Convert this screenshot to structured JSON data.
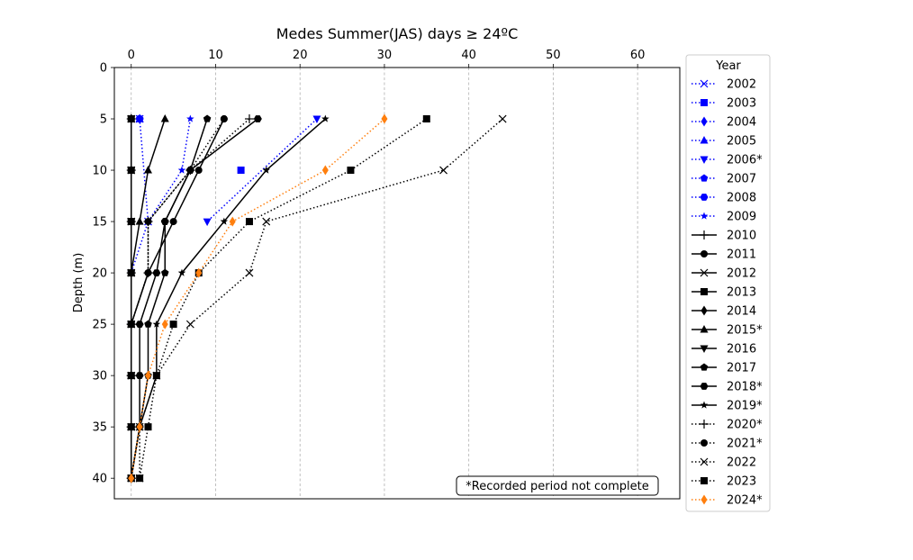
{
  "chart_data": {
    "type": "line",
    "title": "Medes Summer(JAS) days ≥ 24ºC",
    "xlabel": "",
    "ylabel": "Depth (m)",
    "xlim": [
      -2,
      65
    ],
    "ylim": [
      42,
      0
    ],
    "x_ticks": [
      0,
      10,
      20,
      30,
      40,
      50,
      60
    ],
    "y_ticks": [
      0,
      5,
      10,
      15,
      20,
      25,
      30,
      35,
      40
    ],
    "x_axis_position": "top",
    "grid": "vertical dashed",
    "legend_title": "Year",
    "legend_position": "outside right",
    "annotation": "*Recorded period not complete",
    "depths": [
      5,
      10,
      15,
      20,
      25,
      30,
      35,
      40
    ],
    "series": [
      {
        "name": "2002",
        "color": "#0000ff",
        "linestyle": "dotted",
        "marker": "x",
        "depths": [
          5,
          15
        ],
        "values": [
          1,
          2
        ]
      },
      {
        "name": "2003",
        "color": "#0000ff",
        "linestyle": "dotted",
        "marker": "square",
        "depths": [
          10
        ],
        "values": [
          13
        ]
      },
      {
        "name": "2004",
        "color": "#0000ff",
        "linestyle": "dotted",
        "marker": "diamond",
        "depths": [
          5
        ],
        "values": [
          1
        ]
      },
      {
        "name": "2005",
        "color": "#0000ff",
        "linestyle": "dotted",
        "marker": "triangle-up",
        "depths": [
          5
        ],
        "values": [
          1
        ]
      },
      {
        "name": "2006*",
        "color": "#0000ff",
        "linestyle": "dotted",
        "marker": "triangle-down",
        "depths": [
          5,
          15
        ],
        "values": [
          22,
          9
        ]
      },
      {
        "name": "2007",
        "color": "#0000ff",
        "linestyle": "dotted",
        "marker": "pentagon",
        "depths": [
          5
        ],
        "values": [
          1
        ]
      },
      {
        "name": "2008",
        "color": "#0000ff",
        "linestyle": "dotted",
        "marker": "hexagon",
        "depths": [
          5
        ],
        "values": [
          1
        ]
      },
      {
        "name": "2009",
        "color": "#0000ff",
        "linestyle": "dotted",
        "marker": "star",
        "depths": [
          5,
          10,
          15,
          20,
          25
        ],
        "values": [
          7,
          6,
          2,
          0,
          0
        ]
      },
      {
        "name": "2010",
        "color": "#000000",
        "linestyle": "solid",
        "marker": "plus",
        "depths": [
          5,
          10,
          15,
          20,
          25,
          30,
          35,
          40
        ],
        "values": [
          0,
          0,
          0,
          0,
          0,
          0,
          0,
          0
        ]
      },
      {
        "name": "2011",
        "color": "#000000",
        "linestyle": "solid",
        "marker": "circle",
        "depths": [
          5,
          10,
          15,
          20,
          25,
          30,
          35,
          40
        ],
        "values": [
          11,
          8,
          5,
          2,
          0,
          0,
          0,
          0
        ]
      },
      {
        "name": "2012",
        "color": "#000000",
        "linestyle": "solid",
        "marker": "x",
        "depths": [
          5,
          10,
          15,
          20,
          25,
          30,
          35,
          40
        ],
        "values": [
          0,
          0,
          0,
          0,
          0,
          0,
          0,
          0
        ]
      },
      {
        "name": "2013",
        "color": "#000000",
        "linestyle": "solid",
        "marker": "square",
        "depths": [
          5,
          10,
          15,
          20,
          25,
          30,
          35,
          40
        ],
        "values": [
          0,
          0,
          0,
          0,
          0,
          0,
          0,
          0
        ]
      },
      {
        "name": "2014",
        "color": "#000000",
        "linestyle": "solid",
        "marker": "diamond",
        "depths": [
          5,
          10,
          15,
          20,
          25,
          30,
          35,
          40
        ],
        "values": [
          0,
          0,
          0,
          0,
          0,
          0,
          0,
          0
        ]
      },
      {
        "name": "2015*",
        "color": "#000000",
        "linestyle": "solid",
        "marker": "triangle-up",
        "depths": [
          5,
          10,
          15,
          20,
          25,
          30,
          35,
          40
        ],
        "values": [
          4,
          2,
          1,
          0,
          0,
          0,
          0,
          0
        ]
      },
      {
        "name": "2016",
        "color": "#000000",
        "linestyle": "solid",
        "marker": "triangle-down",
        "depths": [
          5,
          10,
          15,
          20,
          25,
          30,
          35,
          40
        ],
        "values": [
          0,
          0,
          0,
          0,
          0,
          0,
          0,
          0
        ]
      },
      {
        "name": "2017",
        "color": "#000000",
        "linestyle": "solid",
        "marker": "pentagon",
        "depths": [
          5,
          10,
          15,
          20,
          25,
          30,
          35,
          40
        ],
        "values": [
          9,
          7,
          4,
          4,
          2,
          2,
          1,
          0
        ]
      },
      {
        "name": "2018*",
        "color": "#000000",
        "linestyle": "solid",
        "marker": "hexagon",
        "depths": [
          5,
          10,
          15,
          20,
          25,
          30,
          35,
          40
        ],
        "values": [
          15,
          7,
          4,
          3,
          1,
          1,
          1,
          0
        ]
      },
      {
        "name": "2019*",
        "color": "#000000",
        "linestyle": "solid",
        "marker": "star",
        "depths": [
          5,
          10,
          15,
          20,
          25,
          30,
          35,
          40
        ],
        "values": [
          23,
          16,
          11,
          6,
          3,
          3,
          1,
          0
        ]
      },
      {
        "name": "2020*",
        "color": "#000000",
        "linestyle": "dotted",
        "marker": "plus",
        "depths": [
          5,
          10,
          15,
          20,
          25,
          30,
          35,
          40
        ],
        "values": [
          14,
          7,
          2,
          2,
          0,
          0,
          0,
          0
        ]
      },
      {
        "name": "2021*",
        "color": "#000000",
        "linestyle": "dotted",
        "marker": "circle",
        "depths": [
          5,
          10,
          15,
          20,
          25,
          30,
          35,
          40
        ],
        "values": [
          11,
          7,
          2,
          2,
          0,
          0,
          0,
          0
        ]
      },
      {
        "name": "2022",
        "color": "#000000",
        "linestyle": "dotted",
        "marker": "x",
        "depths": [
          5,
          10,
          15,
          20,
          25,
          30,
          35,
          40
        ],
        "values": [
          44,
          37,
          16,
          14,
          7,
          3,
          1,
          1
        ]
      },
      {
        "name": "2023",
        "color": "#000000",
        "linestyle": "dotted",
        "marker": "square",
        "depths": [
          5,
          10,
          15,
          20,
          25,
          30,
          35,
          40
        ],
        "values": [
          35,
          26,
          14,
          8,
          5,
          3,
          2,
          1
        ]
      },
      {
        "name": "2024*",
        "color": "#ff7f0e",
        "linestyle": "dotted",
        "marker": "diamond",
        "depths": [
          5,
          10,
          15,
          20,
          25,
          30,
          35,
          40
        ],
        "values": [
          30,
          23,
          12,
          8,
          4,
          2,
          1,
          0
        ]
      }
    ]
  }
}
